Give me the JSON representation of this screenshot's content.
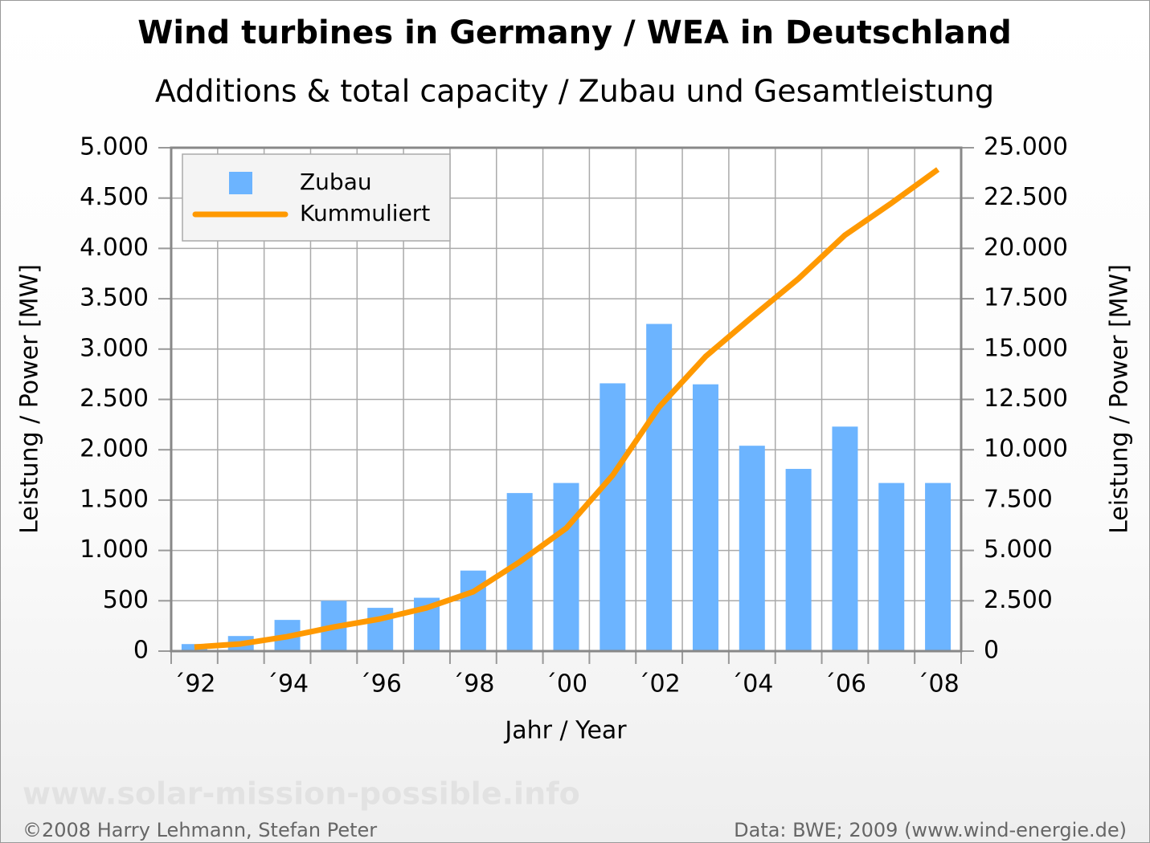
{
  "chart_data": {
    "type": "bar_line",
    "title": "Wind turbines in Germany / WEA in Deutschland",
    "subtitle": "Additions & total capacity / Zubau und Gesamtleistung",
    "xlabel": "Jahr / Year",
    "ylabel": "Leistung / Power [MW]",
    "y2label": "Leistung / Power [MW]",
    "watermark": "www.solar-mission-possible.info",
    "credit_left": "©2008 Harry Lehmann, Stefan Peter",
    "credit_right": "Data: BWE; 2009 (www.wind-energie.de)",
    "categories": [
      "´92",
      null,
      "´94",
      null,
      "´96",
      null,
      "´98",
      null,
      "´00",
      null,
      "´02",
      null,
      "´04",
      null,
      "´06",
      null,
      "´08"
    ],
    "series": [
      {
        "name": "Zubau",
        "type": "bar",
        "color": "#6cb4ff",
        "values": [
          70,
          150,
          310,
          500,
          430,
          530,
          800,
          1570,
          1670,
          2660,
          3250,
          2650,
          2040,
          1810,
          2230,
          1670,
          1670
        ]
      },
      {
        "name": "Kummuliert",
        "type": "line",
        "axis": "y2",
        "color": "#ff9900",
        "values": [
          200,
          360,
          720,
          1200,
          1600,
          2150,
          2950,
          4430,
          6100,
          8730,
          12120,
          14630,
          16590,
          18500,
          20660,
          22250,
          23920
        ]
      }
    ],
    "ylim": [
      0,
      5000
    ],
    "yticks": [
      0,
      500,
      {
        "value": 1000,
        "label": "1.000"
      },
      {
        "value": 1500,
        "label": "1.500"
      },
      {
        "value": 2000,
        "label": "2.000"
      },
      {
        "value": 2500,
        "label": "2.500"
      },
      {
        "value": 3000,
        "label": "3.000"
      },
      {
        "value": 3500,
        "label": "3.500"
      },
      {
        "value": 4000,
        "label": "4.000"
      },
      {
        "value": 4500,
        "label": "4.500"
      },
      {
        "value": 5000,
        "label": "5.000"
      }
    ],
    "y2lim": [
      0,
      25000
    ],
    "y2ticks": [
      0,
      {
        "value": 2500,
        "label": "2.500"
      },
      {
        "value": 5000,
        "label": "5.000"
      },
      {
        "value": 7500,
        "label": "7.500"
      },
      {
        "value": 10000,
        "label": "10.000"
      },
      {
        "value": 12500,
        "label": "12.500"
      },
      {
        "value": 15000,
        "label": "15.000"
      },
      {
        "value": 17500,
        "label": "17.500"
      },
      {
        "value": 20000,
        "label": "20.000"
      },
      {
        "value": 22500,
        "label": "22.500"
      },
      {
        "value": 25000,
        "label": "25.000"
      }
    ],
    "grid": true,
    "legend": "top-left"
  }
}
